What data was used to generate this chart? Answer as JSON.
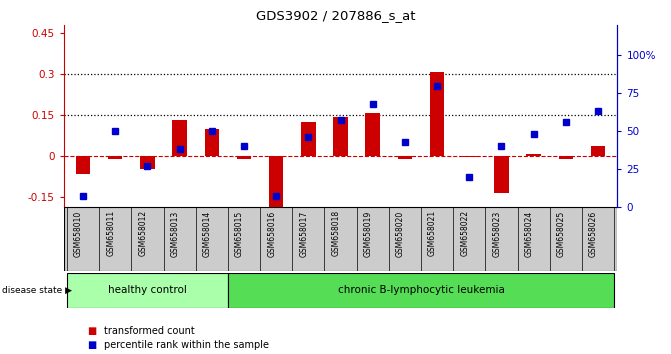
{
  "title": "GDS3902 / 207886_s_at",
  "samples": [
    "GSM658010",
    "GSM658011",
    "GSM658012",
    "GSM658013",
    "GSM658014",
    "GSM658015",
    "GSM658016",
    "GSM658017",
    "GSM658018",
    "GSM658019",
    "GSM658020",
    "GSM658021",
    "GSM658022",
    "GSM658023",
    "GSM658024",
    "GSM658025",
    "GSM658026"
  ],
  "bar_values": [
    -0.065,
    -0.008,
    -0.045,
    0.133,
    0.1,
    -0.008,
    -0.195,
    0.125,
    0.145,
    0.158,
    -0.008,
    0.308,
    -0.004,
    -0.135,
    0.01,
    -0.008,
    0.038
  ],
  "dot_values": [
    0.07,
    0.5,
    0.27,
    0.38,
    0.5,
    0.4,
    0.07,
    0.46,
    0.57,
    0.68,
    0.43,
    0.8,
    0.2,
    0.4,
    0.48,
    0.56,
    0.63
  ],
  "bar_color": "#cc0000",
  "dot_color": "#0000cc",
  "ylim_left": [
    -0.185,
    0.48
  ],
  "ylim_right": [
    0.0,
    1.2
  ],
  "yticks_left": [
    -0.15,
    0.0,
    0.15,
    0.3,
    0.45
  ],
  "ytick_labels_left": [
    "-0.15",
    "0",
    "0.15",
    "0.3",
    "0.45"
  ],
  "ytick_labels_right": [
    "0",
    "25",
    "50",
    "75",
    "100%"
  ],
  "yticks_right": [
    0.0,
    0.25,
    0.5,
    0.75,
    1.0
  ],
  "hlines": [
    0.15,
    0.3
  ],
  "zero_line": 0.0,
  "healthy_control_count": 5,
  "healthy_control_label": "healthy control",
  "leukemia_label": "chronic B-lymphocytic leukemia",
  "disease_state_label": "disease state",
  "legend_bar_label": "transformed count",
  "legend_dot_label": "percentile rank within the sample",
  "healthy_bg": "#aaffaa",
  "leukemia_bg": "#55dd55",
  "xlabel_bg": "#cccccc",
  "bar_width": 0.45
}
